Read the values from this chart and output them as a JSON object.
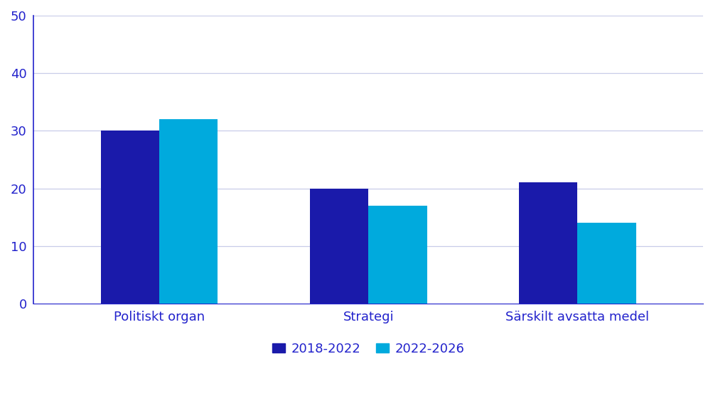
{
  "categories": [
    "Politiskt organ",
    "Strategi",
    "Särskilt avsatta medel"
  ],
  "series": [
    {
      "label": "2018-2022",
      "values": [
        30,
        20,
        21
      ],
      "color": "#1a1aaa"
    },
    {
      "label": "2022-2026",
      "values": [
        32,
        17,
        14
      ],
      "color": "#00aadd"
    }
  ],
  "ylim": [
    0,
    50
  ],
  "yticks": [
    0,
    10,
    20,
    30,
    40,
    50
  ],
  "bar_width": 0.28,
  "background_color": "#ffffff",
  "grid_color": "#c8cce8",
  "spine_color": "#2222cc",
  "tick_label_color": "#2222cc",
  "legend_ncol": 2,
  "font_size_ticks": 13,
  "font_size_legend": 13,
  "font_size_xticks": 13
}
